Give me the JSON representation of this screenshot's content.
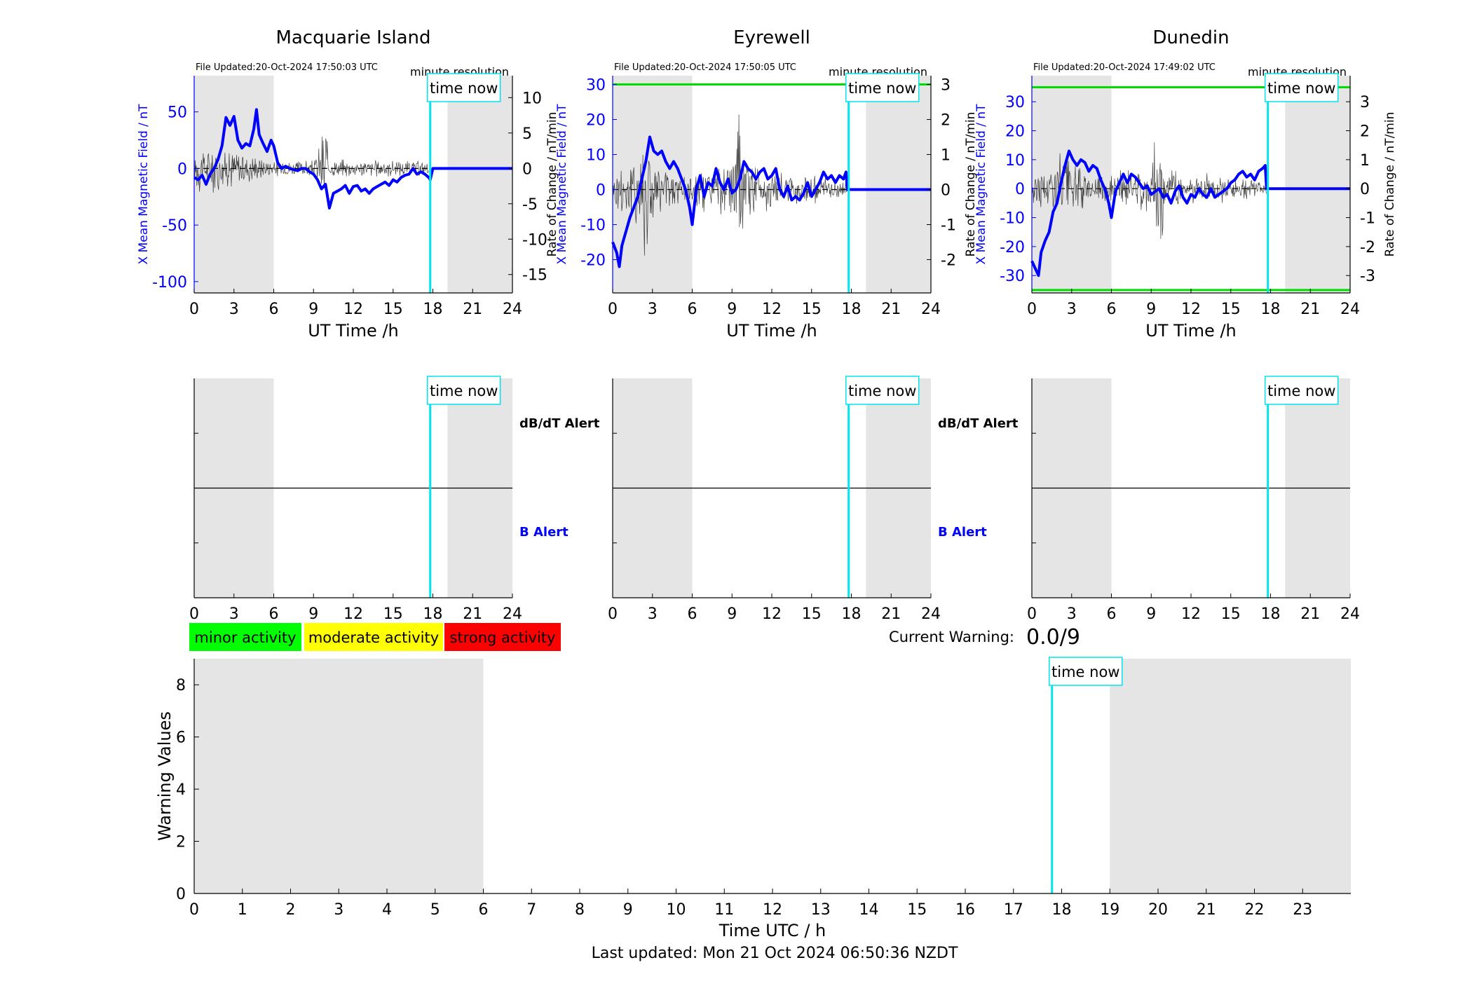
{
  "colors": {
    "field": "#0000ff",
    "rate": "#000000",
    "cursor": "#00e5ee",
    "threshold": "#00dd00",
    "shade": "#e5e5e5",
    "minor": "#00ff00",
    "moderate": "#ffff00",
    "strong": "#ff0000",
    "alert_b": "#0000ff",
    "alert_dbdt": "#000000"
  },
  "time_now_label": "time now",
  "minute_resolution_label": "minute resolution",
  "alert_labels": {
    "dbdt": "dB/dT Alert",
    "b": "B Alert"
  },
  "legend": {
    "minor": "minor activity",
    "moderate": "moderate activity",
    "strong": "strong activity"
  },
  "current_warning": {
    "label": "Current Warning:",
    "value": "0.0/9"
  },
  "last_updated": "Last updated: Mon 21 Oct 2024 06:50:36 NZDT",
  "chart_data": [
    {
      "type": "line",
      "title": "Macquarie Island",
      "file_updated": "File Updated:20-Oct-2024 17:50:03 UTC",
      "xlabel": "UT Time /h",
      "ylabel_left": "X Mean Magnetic Field / nT",
      "ylabel_right": "Rate of Change / nT/min",
      "xlim": [
        0,
        24
      ],
      "xticks": [
        0,
        3,
        6,
        9,
        12,
        15,
        18,
        21,
        24
      ],
      "ylim_left": [
        -110,
        82
      ],
      "yticks_left": [
        -100,
        -50,
        0,
        50
      ],
      "ylim_right": [
        -17.6,
        13.1
      ],
      "yticks_right": [
        -15,
        -10,
        -5,
        0,
        5,
        10
      ],
      "shade_x": [
        [
          0,
          6
        ],
        [
          19.1,
          24
        ]
      ],
      "time_now": 17.8,
      "thresholds": [],
      "field_series": {
        "x": [
          0,
          0.3,
          0.6,
          0.9,
          1.2,
          1.5,
          1.8,
          2.1,
          2.4,
          2.7,
          3.0,
          3.3,
          3.6,
          3.9,
          4.2,
          4.5,
          4.7,
          4.9,
          5.2,
          5.5,
          5.8,
          6.0,
          6.3,
          6.6,
          6.9,
          7.2,
          7.5,
          7.8,
          8.1,
          8.4,
          8.7,
          9.0,
          9.3,
          9.6,
          9.9,
          10.2,
          10.5,
          10.8,
          11.1,
          11.4,
          11.7,
          12.0,
          12.3,
          12.6,
          12.9,
          13.2,
          13.5,
          13.8,
          14.1,
          14.4,
          14.7,
          15.0,
          15.3,
          15.6,
          15.9,
          16.2,
          16.5,
          16.8,
          17.1,
          17.4,
          17.7,
          17.8,
          18.0,
          24.0
        ],
        "y": [
          -8,
          -10,
          -6,
          -14,
          -5,
          0,
          8,
          20,
          45,
          38,
          46,
          25,
          18,
          22,
          20,
          35,
          52,
          30,
          22,
          15,
          25,
          20,
          5,
          0,
          2,
          0,
          -1,
          -2,
          0,
          0,
          -3,
          -5,
          -10,
          -18,
          -14,
          -35,
          -22,
          -20,
          -18,
          -15,
          -22,
          -16,
          -15,
          -20,
          -18,
          -22,
          -18,
          -16,
          -14,
          -12,
          -15,
          -10,
          -12,
          -8,
          -6,
          -5,
          0,
          -5,
          -3,
          -5,
          -8,
          -10,
          0,
          0
        ]
      },
      "rate_envelope": [
        [
          0,
          3
        ],
        [
          0.5,
          4
        ],
        [
          1,
          3
        ],
        [
          1.5,
          4
        ],
        [
          2,
          3
        ],
        [
          2.5,
          3
        ],
        [
          3,
          3.5
        ],
        [
          4,
          2.5
        ],
        [
          5,
          2
        ],
        [
          6,
          1.5
        ],
        [
          7,
          1.5
        ],
        [
          8,
          1.2
        ],
        [
          9,
          1.2
        ],
        [
          9.6,
          5
        ],
        [
          9.9,
          11
        ],
        [
          10.1,
          2
        ],
        [
          10.5,
          1.5
        ],
        [
          11,
          1.5
        ],
        [
          12,
          1.5
        ],
        [
          13,
          1.4
        ],
        [
          14,
          1.4
        ],
        [
          15,
          1.3
        ],
        [
          16,
          1.2
        ],
        [
          17,
          1.2
        ],
        [
          17.7,
          1
        ]
      ]
    },
    {
      "type": "line",
      "title": "Eyrewell",
      "file_updated": "File Updated:20-Oct-2024 17:50:05 UTC",
      "xlabel": "UT Time /h",
      "ylabel_left": "X Mean Magnetic Field / nT",
      "ylabel_right": "Rate of Change / nT/min",
      "xlim": [
        0,
        24
      ],
      "xticks": [
        0,
        3,
        6,
        9,
        12,
        15,
        18,
        21,
        24
      ],
      "ylim_left": [
        -29.5,
        32.5
      ],
      "yticks_left": [
        -20,
        -10,
        0,
        10,
        20,
        30
      ],
      "ylim_right": [
        -2.95,
        3.25
      ],
      "yticks_right": [
        -2,
        -1,
        0,
        1,
        2,
        3
      ],
      "shade_x": [
        [
          0,
          6
        ],
        [
          19.1,
          24
        ]
      ],
      "time_now": 17.8,
      "thresholds": [
        30
      ],
      "field_series": {
        "x": [
          0,
          0.3,
          0.5,
          0.7,
          1.0,
          1.3,
          1.6,
          1.9,
          2.2,
          2.5,
          2.8,
          3.1,
          3.4,
          3.7,
          4.0,
          4.3,
          4.6,
          4.9,
          5.2,
          5.5,
          5.8,
          6.0,
          6.3,
          6.6,
          6.9,
          7.2,
          7.5,
          7.8,
          8.1,
          8.4,
          8.7,
          9.0,
          9.3,
          9.6,
          9.9,
          10.2,
          10.5,
          10.8,
          11.1,
          11.4,
          11.7,
          12.0,
          12.3,
          12.6,
          12.9,
          13.2,
          13.5,
          13.8,
          14.1,
          14.4,
          14.7,
          15.0,
          15.3,
          15.6,
          15.9,
          16.2,
          16.5,
          16.8,
          17.1,
          17.4,
          17.6,
          17.7,
          18.0,
          24.0
        ],
        "y": [
          -15,
          -18,
          -22,
          -16,
          -12,
          -8,
          -5,
          -2,
          3,
          8,
          15,
          11,
          10,
          11,
          8,
          6,
          8,
          6,
          3,
          0,
          -5,
          -10,
          0,
          4,
          -2,
          2,
          1,
          6,
          2,
          0,
          3,
          -1,
          0,
          3,
          8,
          6,
          5,
          3,
          5,
          6,
          3,
          4,
          6,
          0,
          -2,
          1,
          -3,
          -2,
          -3,
          -1,
          2,
          -2,
          0,
          2,
          5,
          3,
          4,
          2,
          4,
          3,
          5,
          0,
          0,
          0
        ]
      },
      "rate_envelope": [
        [
          0,
          0.6
        ],
        [
          0.5,
          1.0
        ],
        [
          1,
          0.9
        ],
        [
          1.5,
          1.2
        ],
        [
          2,
          1.6
        ],
        [
          2.5,
          2.3
        ],
        [
          3,
          1.2
        ],
        [
          3.5,
          0.9
        ],
        [
          4,
          0.7
        ],
        [
          5,
          0.6
        ],
        [
          6,
          0.6
        ],
        [
          7,
          0.7
        ],
        [
          8,
          0.8
        ],
        [
          9,
          0.9
        ],
        [
          9.5,
          2.4
        ],
        [
          10,
          1.2
        ],
        [
          11,
          0.8
        ],
        [
          12,
          0.6
        ],
        [
          13,
          0.6
        ],
        [
          14,
          0.5
        ],
        [
          15,
          0.5
        ],
        [
          16,
          0.4
        ],
        [
          17,
          0.3
        ],
        [
          17.6,
          0.2
        ]
      ]
    },
    {
      "type": "line",
      "title": "Dunedin",
      "file_updated": "File Updated:20-Oct-2024 17:49:02 UTC",
      "xlabel": "UT Time /h",
      "ylabel_left": "X Mean Magnetic Field / nT",
      "ylabel_right": "Rate of Change / nT/min",
      "xlim": [
        0,
        24
      ],
      "xticks": [
        0,
        3,
        6,
        9,
        12,
        15,
        18,
        21,
        24
      ],
      "ylim_left": [
        -36,
        39
      ],
      "yticks_left": [
        -30,
        -20,
        -10,
        0,
        10,
        20,
        30
      ],
      "ylim_right": [
        -3.6,
        3.9
      ],
      "yticks_right": [
        -3,
        -2,
        -1,
        0,
        1,
        2,
        3
      ],
      "shade_x": [
        [
          0,
          6
        ],
        [
          19.1,
          24
        ]
      ],
      "time_now": 17.8,
      "thresholds": [
        35,
        -35
      ],
      "field_series": {
        "x": [
          0,
          0.3,
          0.5,
          0.7,
          1.0,
          1.3,
          1.6,
          1.9,
          2.2,
          2.5,
          2.8,
          3.1,
          3.4,
          3.7,
          4.0,
          4.3,
          4.6,
          4.9,
          5.2,
          5.5,
          5.8,
          6.0,
          6.3,
          6.6,
          6.9,
          7.2,
          7.5,
          7.8,
          8.1,
          8.4,
          8.7,
          9.0,
          9.3,
          9.6,
          9.9,
          10.2,
          10.5,
          10.8,
          11.1,
          11.4,
          11.7,
          12.0,
          12.3,
          12.6,
          12.9,
          13.2,
          13.5,
          13.8,
          14.1,
          14.4,
          14.7,
          15.0,
          15.3,
          15.6,
          15.9,
          16.2,
          16.5,
          16.8,
          17.1,
          17.4,
          17.6,
          17.7,
          18.0,
          24.0
        ],
        "y": [
          -25,
          -28,
          -30,
          -22,
          -18,
          -15,
          -8,
          -5,
          2,
          8,
          13,
          10,
          8,
          10,
          9,
          6,
          8,
          7,
          3,
          0,
          -5,
          -10,
          -1,
          2,
          5,
          2,
          5,
          4,
          2,
          0,
          1,
          -2,
          -1,
          0,
          -3,
          -2,
          -5,
          -1,
          1,
          -3,
          -5,
          -2,
          -3,
          0,
          -2,
          -3,
          0,
          -3,
          -2,
          -1,
          0,
          2,
          3,
          5,
          6,
          4,
          5,
          3,
          6,
          7,
          8,
          0,
          0,
          0
        ]
      },
      "rate_envelope": [
        [
          0,
          0.7
        ],
        [
          0.5,
          1.0
        ],
        [
          1,
          0.8
        ],
        [
          1.5,
          1.1
        ],
        [
          2,
          1.5
        ],
        [
          2.5,
          2.3
        ],
        [
          3,
          1.0
        ],
        [
          3.5,
          0.8
        ],
        [
          4,
          0.7
        ],
        [
          5,
          0.6
        ],
        [
          6,
          0.6
        ],
        [
          7,
          0.7
        ],
        [
          8,
          0.8
        ],
        [
          9,
          0.9
        ],
        [
          9.6,
          3.2
        ],
        [
          10,
          1.0
        ],
        [
          11,
          0.8
        ],
        [
          12,
          0.6
        ],
        [
          13,
          0.6
        ],
        [
          14,
          0.5
        ],
        [
          15,
          0.5
        ],
        [
          16,
          0.4
        ],
        [
          17,
          0.3
        ],
        [
          17.6,
          0.2
        ]
      ]
    },
    {
      "type": "bar",
      "title": "",
      "xlabel": "Time UTC / h",
      "ylabel": "Warning Values",
      "xlim": [
        0,
        24
      ],
      "xticks": [
        0,
        1,
        2,
        3,
        4,
        5,
        6,
        7,
        8,
        9,
        10,
        11,
        12,
        13,
        14,
        15,
        16,
        17,
        18,
        19,
        20,
        21,
        22,
        23
      ],
      "ylim": [
        0,
        9
      ],
      "yticks": [
        0,
        2,
        4,
        6,
        8
      ],
      "shade_x": [
        [
          0,
          6
        ],
        [
          19,
          24
        ]
      ],
      "time_now": 17.8,
      "values": []
    }
  ]
}
